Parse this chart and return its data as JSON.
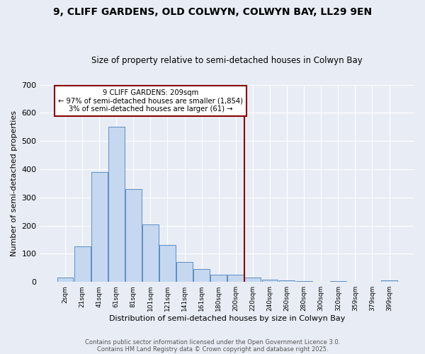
{
  "title": "9, CLIFF GARDENS, OLD COLWYN, COLWYN BAY, LL29 9EN",
  "subtitle": "Size of property relative to semi-detached houses in Colwyn Bay",
  "xlabel": "Distribution of semi-detached houses by size in Colwyn Bay",
  "ylabel": "Number of semi-detached properties",
  "categories": [
    "2sqm",
    "21sqm",
    "41sqm",
    "61sqm",
    "81sqm",
    "101sqm",
    "121sqm",
    "141sqm",
    "161sqm",
    "180sqm",
    "200sqm",
    "220sqm",
    "240sqm",
    "260sqm",
    "280sqm",
    "300sqm",
    "320sqm",
    "359sqm",
    "379sqm",
    "399sqm"
  ],
  "values": [
    15,
    125,
    390,
    550,
    330,
    205,
    130,
    70,
    45,
    25,
    25,
    15,
    7,
    5,
    2,
    1,
    4,
    1,
    1,
    5
  ],
  "bar_color": "#c5d8f0",
  "bar_edge_color": "#5b8ec4",
  "bg_color": "#e8edf5",
  "grid_color": "#ffffff",
  "vline_color": "#8b0000",
  "annotation_text": "9 CLIFF GARDENS: 209sqm\n← 97% of semi-detached houses are smaller (1,854)\n3% of semi-detached houses are larger (61) →",
  "annotation_box_color": "#8b0000",
  "footer1": "Contains public sector information licensed under the Open Government Licence 3.0.",
  "footer2": "Contains HM Land Registry data © Crown copyright and database right 2025.",
  "ylim": [
    0,
    700
  ],
  "yticks": [
    0,
    100,
    200,
    300,
    400,
    500,
    600,
    700
  ],
  "vline_position": 10.5
}
